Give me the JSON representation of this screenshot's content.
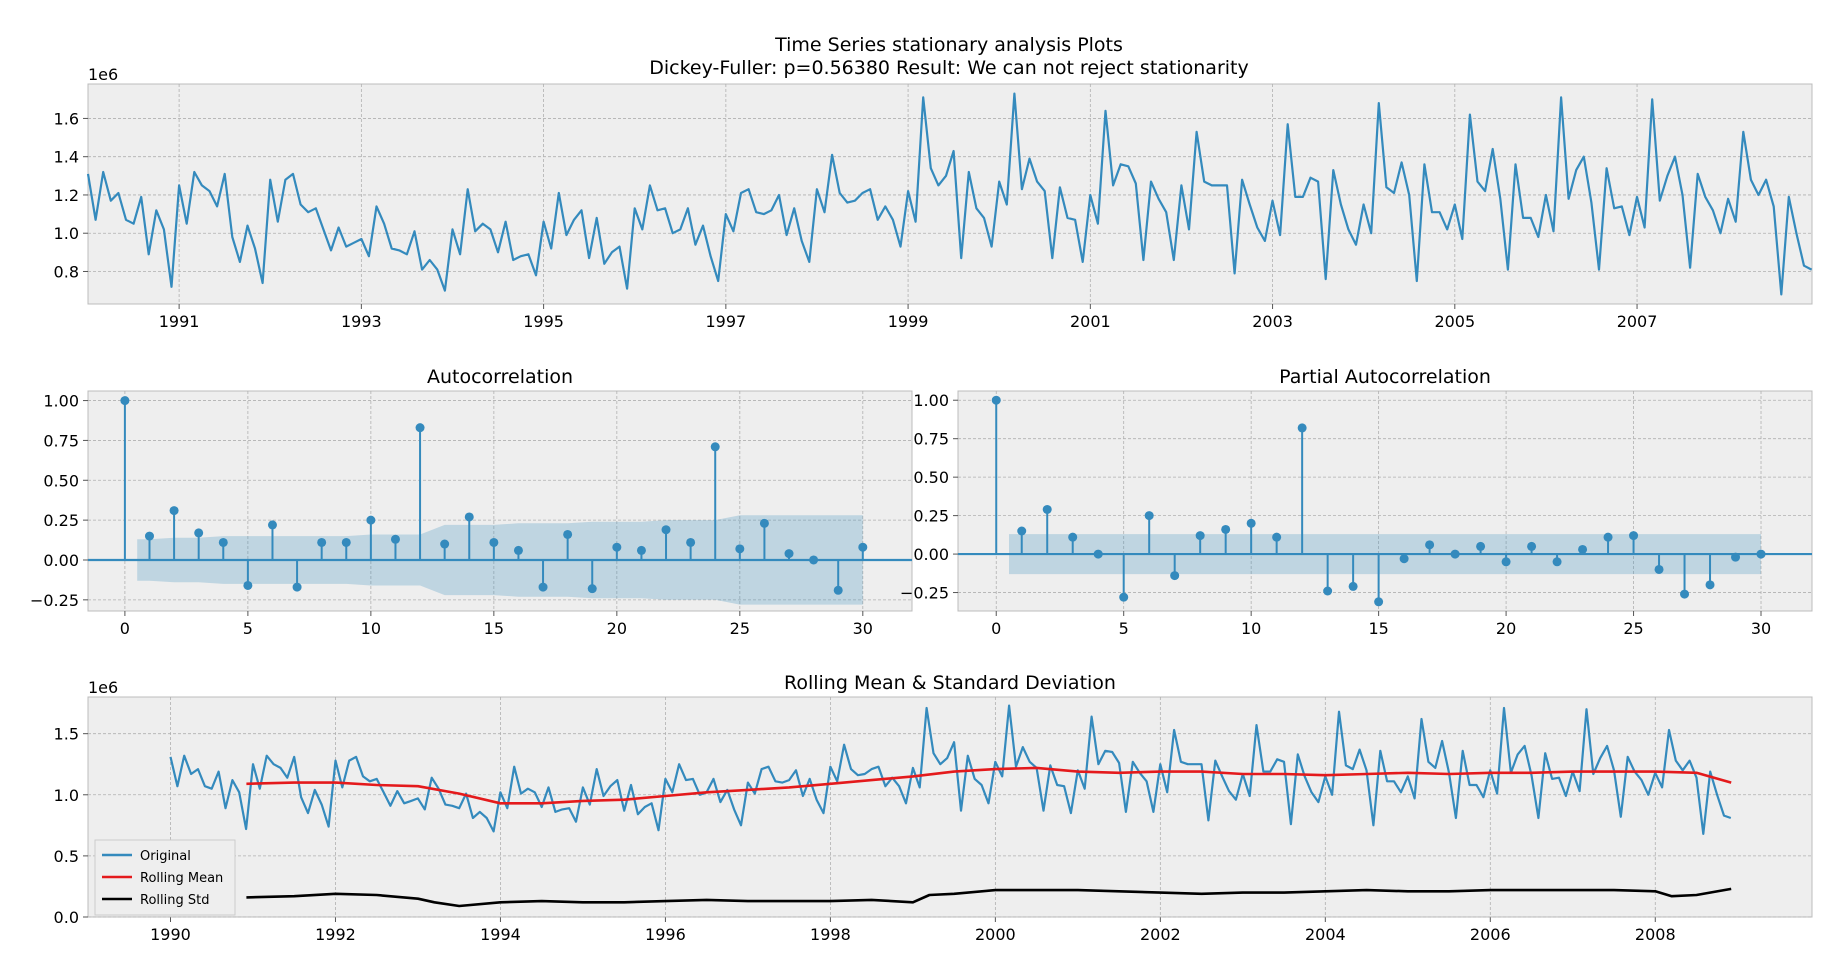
{
  "figure": {
    "title_line1": "Time Series stationary analysis Plots",
    "title_line2": "Dickey-Fuller: p=0.56380 Result: We can not reject stationarity"
  },
  "colors": {
    "series": "#348abd",
    "mean": "#e41a1c",
    "std": "#000000",
    "band": "#348abd",
    "background": "#eeeeee"
  },
  "chart_data": [
    {
      "id": "series",
      "type": "line",
      "title": "",
      "ylabel_exponent": "1e6",
      "start_year": 1990,
      "step_years": 0.08333,
      "xlim": [
        1990.0,
        2008.92
      ],
      "ylim": [
        0.63,
        1.78
      ],
      "xticks": [
        1991,
        1993,
        1995,
        1997,
        1999,
        2001,
        2003,
        2005,
        2007
      ],
      "xtick_labels": [
        "1991",
        "1993",
        "1995",
        "1997",
        "1999",
        "2001",
        "2003",
        "2005",
        "2007"
      ],
      "yticks": [
        0.8,
        1.0,
        1.2,
        1.4,
        1.6
      ],
      "ytick_labels": [
        "0.8",
        "1.0",
        "1.2",
        "1.4",
        "1.6"
      ],
      "values": [
        1.31,
        1.07,
        1.32,
        1.17,
        1.21,
        1.07,
        1.05,
        1.19,
        0.89,
        1.12,
        1.02,
        0.72,
        1.25,
        1.05,
        1.32,
        1.25,
        1.22,
        1.14,
        1.31,
        0.98,
        0.85,
        1.04,
        0.92,
        0.74,
        1.28,
        1.06,
        1.28,
        1.31,
        1.15,
        1.11,
        1.13,
        1.02,
        0.91,
        1.03,
        0.93,
        0.95,
        0.97,
        0.88,
        1.14,
        1.05,
        0.92,
        0.91,
        0.89,
        1.01,
        0.81,
        0.86,
        0.81,
        0.7,
        1.02,
        0.89,
        1.23,
        1.01,
        1.05,
        1.02,
        0.9,
        1.06,
        0.86,
        0.88,
        0.89,
        0.78,
        1.06,
        0.92,
        1.21,
        0.99,
        1.07,
        1.12,
        0.87,
        1.08,
        0.84,
        0.9,
        0.93,
        0.71,
        1.13,
        1.02,
        1.25,
        1.12,
        1.13,
        1.0,
        1.02,
        1.13,
        0.94,
        1.04,
        0.88,
        0.75,
        1.1,
        1.01,
        1.21,
        1.23,
        1.11,
        1.1,
        1.12,
        1.2,
        0.99,
        1.13,
        0.96,
        0.85,
        1.23,
        1.11,
        1.41,
        1.21,
        1.16,
        1.17,
        1.21,
        1.23,
        1.07,
        1.14,
        1.07,
        0.93,
        1.22,
        1.06,
        1.71,
        1.34,
        1.25,
        1.3,
        1.43,
        0.87,
        1.32,
        1.13,
        1.08,
        0.93,
        1.27,
        1.15,
        1.73,
        1.23,
        1.39,
        1.27,
        1.22,
        0.87,
        1.24,
        1.08,
        1.07,
        0.85,
        1.2,
        1.05,
        1.64,
        1.25,
        1.36,
        1.35,
        1.26,
        0.86,
        1.27,
        1.18,
        1.11,
        0.86,
        1.25,
        1.02,
        1.53,
        1.27,
        1.25,
        1.25,
        1.25,
        0.79,
        1.28,
        1.15,
        1.03,
        0.96,
        1.17,
        0.99,
        1.57,
        1.19,
        1.19,
        1.29,
        1.27,
        0.76,
        1.33,
        1.15,
        1.02,
        0.94,
        1.15,
        1.0,
        1.68,
        1.24,
        1.21,
        1.37,
        1.2,
        0.75,
        1.36,
        1.11,
        1.11,
        1.02,
        1.15,
        0.97,
        1.62,
        1.27,
        1.22,
        1.44,
        1.18,
        0.81,
        1.36,
        1.08,
        1.08,
        0.98,
        1.2,
        1.01,
        1.71,
        1.18,
        1.33,
        1.4,
        1.16,
        0.81,
        1.34,
        1.13,
        1.14,
        0.99,
        1.19,
        1.03,
        1.7,
        1.17,
        1.3,
        1.4,
        1.2,
        0.82,
        1.31,
        1.19,
        1.12,
        1.0,
        1.18,
        1.06,
        1.53,
        1.28,
        1.2,
        1.28,
        1.14,
        0.68,
        1.19,
        1.0,
        0.83,
        0.81
      ]
    },
    {
      "id": "acf",
      "type": "stem",
      "title": "Autocorrelation",
      "xlim": [
        -1.5,
        32
      ],
      "ylim": [
        -0.32,
        1.06
      ],
      "xticks": [
        0,
        5,
        10,
        15,
        20,
        25,
        30
      ],
      "xtick_labels": [
        "0",
        "5",
        "10",
        "15",
        "20",
        "25",
        "30"
      ],
      "yticks": [
        -0.25,
        0.0,
        0.25,
        0.5,
        0.75,
        1.0
      ],
      "ytick_labels": [
        "−0.25",
        "0.00",
        "0.25",
        "0.50",
        "0.75",
        "1.00"
      ],
      "lags": [
        0,
        1,
        2,
        3,
        4,
        5,
        6,
        7,
        8,
        9,
        10,
        11,
        12,
        13,
        14,
        15,
        16,
        17,
        18,
        19,
        20,
        21,
        22,
        23,
        24,
        25,
        26,
        27,
        28,
        29,
        30
      ],
      "values": [
        1.0,
        0.15,
        0.31,
        0.17,
        0.11,
        -0.16,
        0.22,
        -0.17,
        0.11,
        0.11,
        0.25,
        0.13,
        0.83,
        0.1,
        0.27,
        0.11,
        0.06,
        -0.17,
        0.16,
        -0.18,
        0.08,
        0.06,
        0.19,
        0.11,
        0.71,
        0.07,
        0.23,
        0.04,
        0.0,
        -0.19,
        0.08
      ],
      "confint": [
        0.13,
        0.13,
        0.14,
        0.14,
        0.15,
        0.15,
        0.15,
        0.15,
        0.15,
        0.15,
        0.16,
        0.16,
        0.16,
        0.22,
        0.22,
        0.22,
        0.23,
        0.23,
        0.23,
        0.24,
        0.24,
        0.24,
        0.25,
        0.25,
        0.25,
        0.28,
        0.28,
        0.28,
        0.28,
        0.28,
        0.28
      ]
    },
    {
      "id": "pacf",
      "type": "stem",
      "title": "Partial Autocorrelation",
      "xlim": [
        -1.5,
        32
      ],
      "ylim": [
        -0.37,
        1.06
      ],
      "xticks": [
        0,
        5,
        10,
        15,
        20,
        25,
        30
      ],
      "xtick_labels": [
        "0",
        "5",
        "10",
        "15",
        "20",
        "25",
        "30"
      ],
      "yticks": [
        -0.25,
        0.0,
        0.25,
        0.5,
        0.75,
        1.0
      ],
      "ytick_labels": [
        "−0.25",
        "0.00",
        "0.25",
        "0.50",
        "0.75",
        "1.00"
      ],
      "lags": [
        0,
        1,
        2,
        3,
        4,
        5,
        6,
        7,
        8,
        9,
        10,
        11,
        12,
        13,
        14,
        15,
        16,
        17,
        18,
        19,
        20,
        21,
        22,
        23,
        24,
        25,
        26,
        27,
        28,
        29,
        30
      ],
      "values": [
        1.0,
        0.15,
        0.29,
        0.11,
        0.0,
        -0.28,
        0.25,
        -0.14,
        0.12,
        0.16,
        0.2,
        0.11,
        0.82,
        -0.24,
        -0.21,
        -0.31,
        -0.03,
        0.06,
        0.0,
        0.05,
        -0.05,
        0.05,
        -0.05,
        0.03,
        0.11,
        0.12,
        -0.1,
        -0.26,
        -0.2,
        -0.02,
        0.0
      ],
      "confint": 0.13
    },
    {
      "id": "rolling",
      "type": "line",
      "title": "Rolling Mean & Standard Deviation",
      "ylabel_exponent": "1e6",
      "xlim": [
        1989.0,
        2009.9
      ],
      "ylim": [
        0.0,
        1.8
      ],
      "xticks": [
        1990,
        1992,
        1994,
        1996,
        1998,
        2000,
        2002,
        2004,
        2006,
        2008
      ],
      "xtick_labels": [
        "1990",
        "1992",
        "1994",
        "1996",
        "1998",
        "2000",
        "2002",
        "2004",
        "2006",
        "2008"
      ],
      "yticks": [
        0.0,
        0.5,
        1.0,
        1.5
      ],
      "ytick_labels": [
        "0.0",
        "0.5",
        "1.0",
        "1.5"
      ],
      "legend_position": "lower-left",
      "legend": [
        "Original",
        "Rolling Mean",
        "Rolling Std"
      ],
      "rolling_mean": {
        "x": [
          1990.92,
          1991.5,
          1992.0,
          1992.5,
          1993.0,
          1993.5,
          1994.0,
          1994.5,
          1995.0,
          1995.5,
          1996.0,
          1996.5,
          1997.0,
          1997.5,
          1998.0,
          1998.5,
          1999.0,
          1999.5,
          2000.0,
          2000.5,
          2001.0,
          2001.5,
          2002.0,
          2002.5,
          2003.0,
          2003.5,
          2004.0,
          2004.5,
          2005.0,
          2005.5,
          2006.0,
          2006.5,
          2007.0,
          2007.5,
          2008.0,
          2008.5,
          2008.92
        ],
        "y": [
          1.09,
          1.1,
          1.1,
          1.08,
          1.07,
          1.01,
          0.93,
          0.93,
          0.95,
          0.96,
          0.99,
          1.02,
          1.04,
          1.06,
          1.09,
          1.12,
          1.15,
          1.19,
          1.21,
          1.22,
          1.19,
          1.18,
          1.19,
          1.19,
          1.17,
          1.17,
          1.16,
          1.17,
          1.18,
          1.17,
          1.18,
          1.18,
          1.19,
          1.19,
          1.19,
          1.18,
          1.1
        ]
      },
      "rolling_std": {
        "x": [
          1990.92,
          1991.5,
          1992.0,
          1992.5,
          1993.0,
          1993.2,
          1993.5,
          1994.0,
          1994.5,
          1995.0,
          1995.5,
          1996.0,
          1996.5,
          1997.0,
          1997.5,
          1998.0,
          1998.5,
          1999.0,
          1999.2,
          1999.5,
          2000.0,
          2000.5,
          2001.0,
          2001.5,
          2002.0,
          2002.5,
          2003.0,
          2003.5,
          2004.0,
          2004.5,
          2005.0,
          2005.5,
          2006.0,
          2006.5,
          2007.0,
          2007.5,
          2008.0,
          2008.2,
          2008.5,
          2008.92
        ],
        "y": [
          0.16,
          0.17,
          0.19,
          0.18,
          0.15,
          0.12,
          0.09,
          0.12,
          0.13,
          0.12,
          0.12,
          0.13,
          0.14,
          0.13,
          0.13,
          0.13,
          0.14,
          0.12,
          0.18,
          0.19,
          0.22,
          0.22,
          0.22,
          0.21,
          0.2,
          0.19,
          0.2,
          0.2,
          0.21,
          0.22,
          0.21,
          0.21,
          0.22,
          0.22,
          0.22,
          0.22,
          0.21,
          0.17,
          0.18,
          0.23
        ]
      }
    }
  ]
}
